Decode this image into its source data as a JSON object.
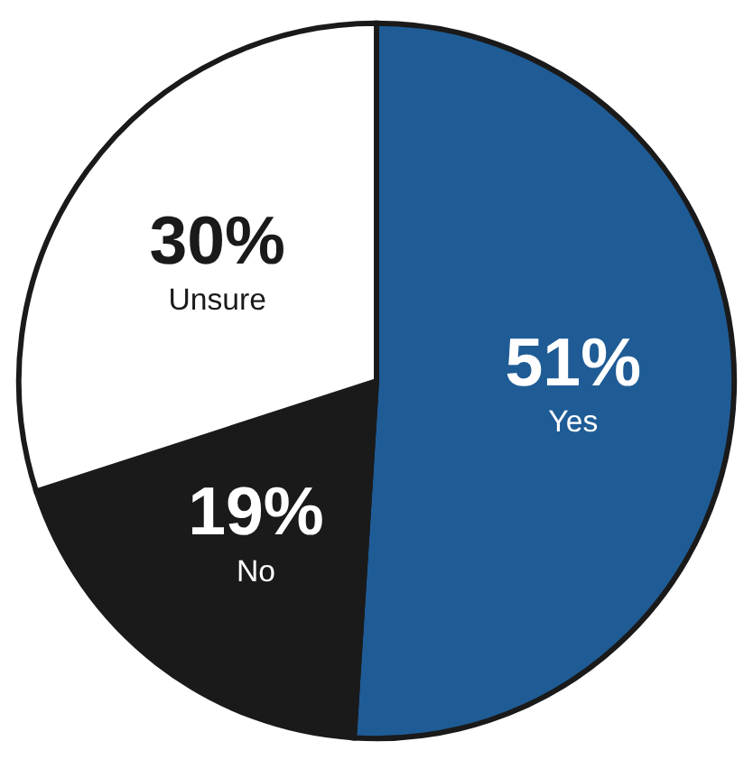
{
  "chart_data": {
    "type": "pie",
    "categories": [
      "Yes",
      "No",
      "Unsure"
    ],
    "values": [
      51,
      19,
      30
    ],
    "value_labels": [
      "51%",
      "19%",
      "30%"
    ],
    "colors": [
      "#1f5c96",
      "#1a1a1a",
      "#ffffff"
    ],
    "legend": false
  }
}
